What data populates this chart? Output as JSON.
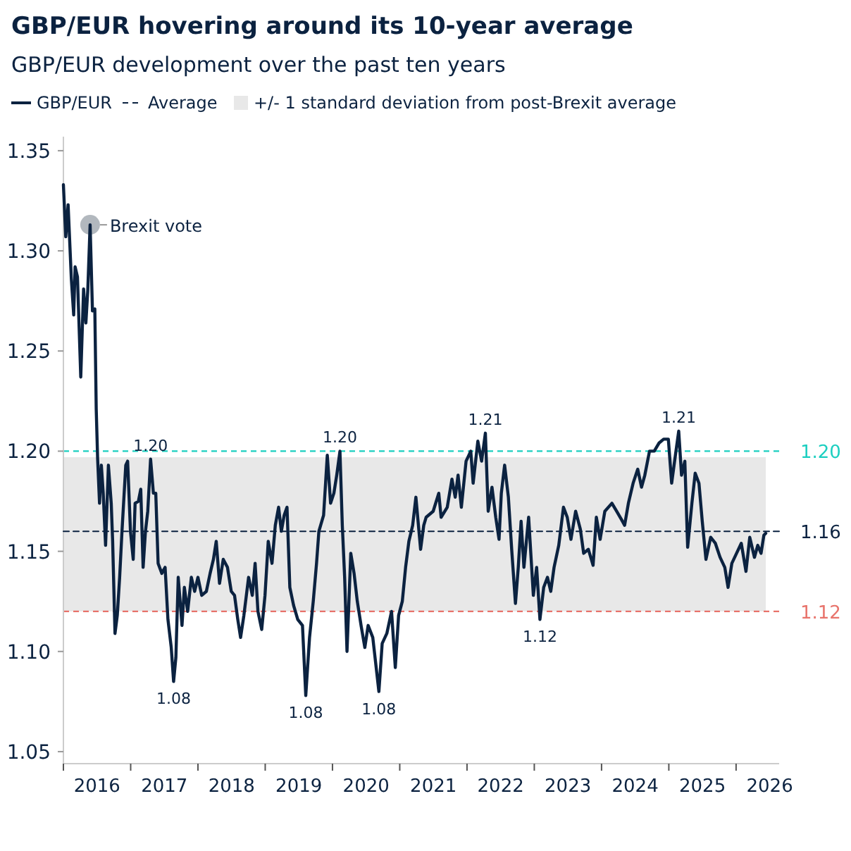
{
  "chart_data": {
    "type": "line",
    "title": "GBP/EUR hovering around its 10-year average",
    "subtitle": "GBP/EUR development over the past ten years",
    "legend": "top",
    "grid": false,
    "xlim": [
      2016,
      2026.64
    ],
    "ylim": [
      1.044,
      1.357
    ],
    "xticks": [
      {
        "value": 2016,
        "label": null
      },
      {
        "value": 2016.5,
        "label": "2016"
      },
      {
        "value": 2017,
        "label": null
      },
      {
        "value": 2017.5,
        "label": "2017"
      },
      {
        "value": 2018,
        "label": null
      },
      {
        "value": 2018.5,
        "label": "2018"
      },
      {
        "value": 2019,
        "label": null
      },
      {
        "value": 2019.5,
        "label": "2019"
      },
      {
        "value": 2020,
        "label": null
      },
      {
        "value": 2020.5,
        "label": "2020"
      },
      {
        "value": 2021,
        "label": null
      },
      {
        "value": 2021.5,
        "label": "2021"
      },
      {
        "value": 2022,
        "label": null
      },
      {
        "value": 2022.5,
        "label": "2022"
      },
      {
        "value": 2023,
        "label": null
      },
      {
        "value": 2023.5,
        "label": "2023"
      },
      {
        "value": 2024,
        "label": null
      },
      {
        "value": 2024.5,
        "label": "2024"
      },
      {
        "value": 2025,
        "label": null
      },
      {
        "value": 2025.5,
        "label": "2025"
      },
      {
        "value": 2026,
        "label": null
      },
      {
        "value": 2026.5,
        "label": "2026"
      }
    ],
    "yticks": [
      {
        "value": 1.05,
        "label": "1.05"
      },
      {
        "value": 1.1,
        "label": "1.10"
      },
      {
        "value": 1.15,
        "label": "1.15"
      },
      {
        "value": 1.2,
        "label": "1.20"
      },
      {
        "value": 1.25,
        "label": "1.25"
      },
      {
        "value": 1.3,
        "label": "1.30"
      },
      {
        "value": 1.35,
        "label": "1.35"
      }
    ],
    "series": [
      {
        "name": "GBP/EUR",
        "color": "#0b2240",
        "line_style": "solid",
        "x": [
          2016.0,
          2016.035,
          2016.07,
          2016.118,
          2016.153,
          2016.174,
          2016.209,
          2016.258,
          2016.3,
          2016.334,
          2016.362,
          2016.397,
          2016.432,
          2016.467,
          2016.488,
          2016.509,
          2016.537,
          2016.564,
          2016.592,
          2016.627,
          2016.669,
          2016.711,
          2016.732,
          2016.767,
          2016.801,
          2016.836,
          2016.871,
          2016.927,
          2016.955,
          2016.997,
          2017.038,
          2017.066,
          2017.115,
          2017.15,
          2017.185,
          2017.22,
          2017.254,
          2017.296,
          2017.338,
          2017.373,
          2017.408,
          2017.463,
          2017.512,
          2017.554,
          2017.603,
          2017.638,
          2017.672,
          2017.707,
          2017.763,
          2017.798,
          2017.847,
          2017.902,
          2017.951,
          2018.0,
          2018.056,
          2018.125,
          2018.181,
          2018.23,
          2018.272,
          2018.321,
          2018.376,
          2018.439,
          2018.495,
          2018.544,
          2018.592,
          2018.634,
          2018.683,
          2018.753,
          2018.808,
          2018.85,
          2018.892,
          2018.948,
          2018.997,
          2019.045,
          2019.101,
          2019.15,
          2019.199,
          2019.24,
          2019.282,
          2019.324,
          2019.366,
          2019.422,
          2019.484,
          2019.554,
          2019.603,
          2019.659,
          2019.714,
          2019.763,
          2019.798,
          2019.868,
          2019.923,
          2019.972,
          2020.021,
          2020.063,
          2020.111,
          2020.146,
          2020.181,
          2020.216,
          2020.272,
          2020.321,
          2020.369,
          2020.425,
          2020.481,
          2020.53,
          2020.599,
          2020.69,
          2020.739,
          2020.808,
          2020.878,
          2020.934,
          2020.983,
          2021.038,
          2021.087,
          2021.136,
          2021.192,
          2021.24,
          2021.31,
          2021.357,
          2021.392,
          2021.497,
          2021.58,
          2021.615,
          2021.706,
          2021.776,
          2021.825,
          2021.867,
          2021.916,
          2021.986,
          2022.056,
          2022.091,
          2022.161,
          2022.217,
          2022.273,
          2022.315,
          2022.371,
          2022.427,
          2022.476,
          2022.51,
          2022.559,
          2022.615,
          2022.664,
          2022.72,
          2022.762,
          2022.804,
          2022.846,
          2022.916,
          2022.986,
          2023.035,
          2023.084,
          2023.14,
          2023.196,
          2023.245,
          2023.294,
          2023.364,
          2023.434,
          2023.49,
          2023.545,
          2023.615,
          2023.685,
          2023.734,
          2023.804,
          2023.874,
          2023.923,
          2023.979,
          2024.049,
          2024.154,
          2024.224,
          2024.294,
          2024.343,
          2024.399,
          2024.469,
          2024.538,
          2024.594,
          2024.643,
          2024.713,
          2024.783,
          2024.853,
          2024.923,
          2024.993,
          2025.042,
          2025.098,
          2025.147,
          2025.189,
          2025.238,
          2025.28,
          2025.343,
          2025.392,
          2025.448,
          2025.497,
          2025.552,
          2025.622,
          2025.692,
          2025.762,
          2025.832,
          2025.881,
          2025.937,
          2026.007,
          2026.077,
          2026.147,
          2026.203,
          2026.273,
          2026.322,
          2026.371,
          2026.413,
          2026.441
        ],
        "values": [
          1.333,
          1.307,
          1.323,
          1.286,
          1.268,
          1.292,
          1.287,
          1.237,
          1.281,
          1.264,
          1.28,
          1.313,
          1.27,
          1.271,
          1.221,
          1.196,
          1.174,
          1.193,
          1.179,
          1.153,
          1.193,
          1.174,
          1.155,
          1.109,
          1.118,
          1.137,
          1.16,
          1.193,
          1.195,
          1.16,
          1.146,
          1.174,
          1.175,
          1.181,
          1.142,
          1.16,
          1.17,
          1.196,
          1.179,
          1.179,
          1.144,
          1.139,
          1.142,
          1.116,
          1.102,
          1.085,
          1.097,
          1.137,
          1.113,
          1.132,
          1.12,
          1.137,
          1.13,
          1.137,
          1.128,
          1.13,
          1.139,
          1.146,
          1.155,
          1.134,
          1.146,
          1.142,
          1.13,
          1.128,
          1.116,
          1.107,
          1.118,
          1.137,
          1.128,
          1.144,
          1.12,
          1.111,
          1.128,
          1.155,
          1.144,
          1.163,
          1.172,
          1.16,
          1.168,
          1.172,
          1.132,
          1.123,
          1.116,
          1.113,
          1.078,
          1.107,
          1.125,
          1.144,
          1.16,
          1.168,
          1.198,
          1.174,
          1.179,
          1.188,
          1.2,
          1.163,
          1.137,
          1.1,
          1.149,
          1.139,
          1.125,
          1.113,
          1.102,
          1.113,
          1.107,
          1.08,
          1.104,
          1.109,
          1.12,
          1.092,
          1.118,
          1.125,
          1.142,
          1.155,
          1.163,
          1.177,
          1.151,
          1.163,
          1.167,
          1.17,
          1.179,
          1.167,
          1.172,
          1.186,
          1.177,
          1.188,
          1.172,
          1.195,
          1.2,
          1.184,
          1.205,
          1.195,
          1.209,
          1.17,
          1.182,
          1.167,
          1.156,
          1.179,
          1.193,
          1.177,
          1.151,
          1.124,
          1.142,
          1.165,
          1.142,
          1.167,
          1.128,
          1.142,
          1.116,
          1.132,
          1.137,
          1.13,
          1.142,
          1.153,
          1.172,
          1.167,
          1.156,
          1.17,
          1.161,
          1.149,
          1.151,
          1.143,
          1.167,
          1.156,
          1.17,
          1.174,
          1.17,
          1.166,
          1.163,
          1.174,
          1.184,
          1.191,
          1.182,
          1.188,
          1.2,
          1.2,
          1.204,
          1.206,
          1.206,
          1.184,
          1.198,
          1.21,
          1.188,
          1.195,
          1.152,
          1.174,
          1.189,
          1.184,
          1.165,
          1.146,
          1.157,
          1.154,
          1.147,
          1.142,
          1.132,
          1.144,
          1.149,
          1.154,
          1.14,
          1.157,
          1.147,
          1.153,
          1.149,
          1.158,
          1.159
        ]
      },
      {
        "name": "Average",
        "color": "#0b2240",
        "line_style": "dashed",
        "x": [
          2016,
          2026.64
        ],
        "values": [
          1.16,
          1.16
        ]
      }
    ],
    "ref_lines": [
      {
        "axis": "y",
        "value": 1.2,
        "label": "1.20",
        "color": "#1ccfc0",
        "line_style": "dashed"
      },
      {
        "axis": "y",
        "value": 1.12,
        "label": "1.12",
        "color": "#e8736b",
        "line_style": "dashed"
      }
    ],
    "bands": [
      {
        "axis": "y",
        "from": 1.12,
        "to": 1.197,
        "label": "+/- 1 standard deviation from post-Brexit average",
        "color": "#e8e8e8"
      }
    ],
    "annotations": [
      {
        "text": "Brexit vote",
        "x": 2016.397,
        "y": 1.313
      },
      {
        "text": "1.20",
        "x": 2017.296,
        "y": 1.196
      },
      {
        "text": "1.08",
        "x": 2017.638,
        "y": 1.085
      },
      {
        "text": "1.08",
        "x": 2019.603,
        "y": 1.078
      },
      {
        "text": "1.20",
        "x": 2020.111,
        "y": 1.2
      },
      {
        "text": "1.08",
        "x": 2020.69,
        "y": 1.08
      },
      {
        "text": "1.21",
        "x": 2022.273,
        "y": 1.209
      },
      {
        "text": "1.12",
        "x": 2023.084,
        "y": 1.116
      },
      {
        "text": "1.21",
        "x": 2025.147,
        "y": 1.21
      },
      {
        "text": "1.16",
        "x": 2026.64,
        "y": 1.16
      }
    ]
  }
}
